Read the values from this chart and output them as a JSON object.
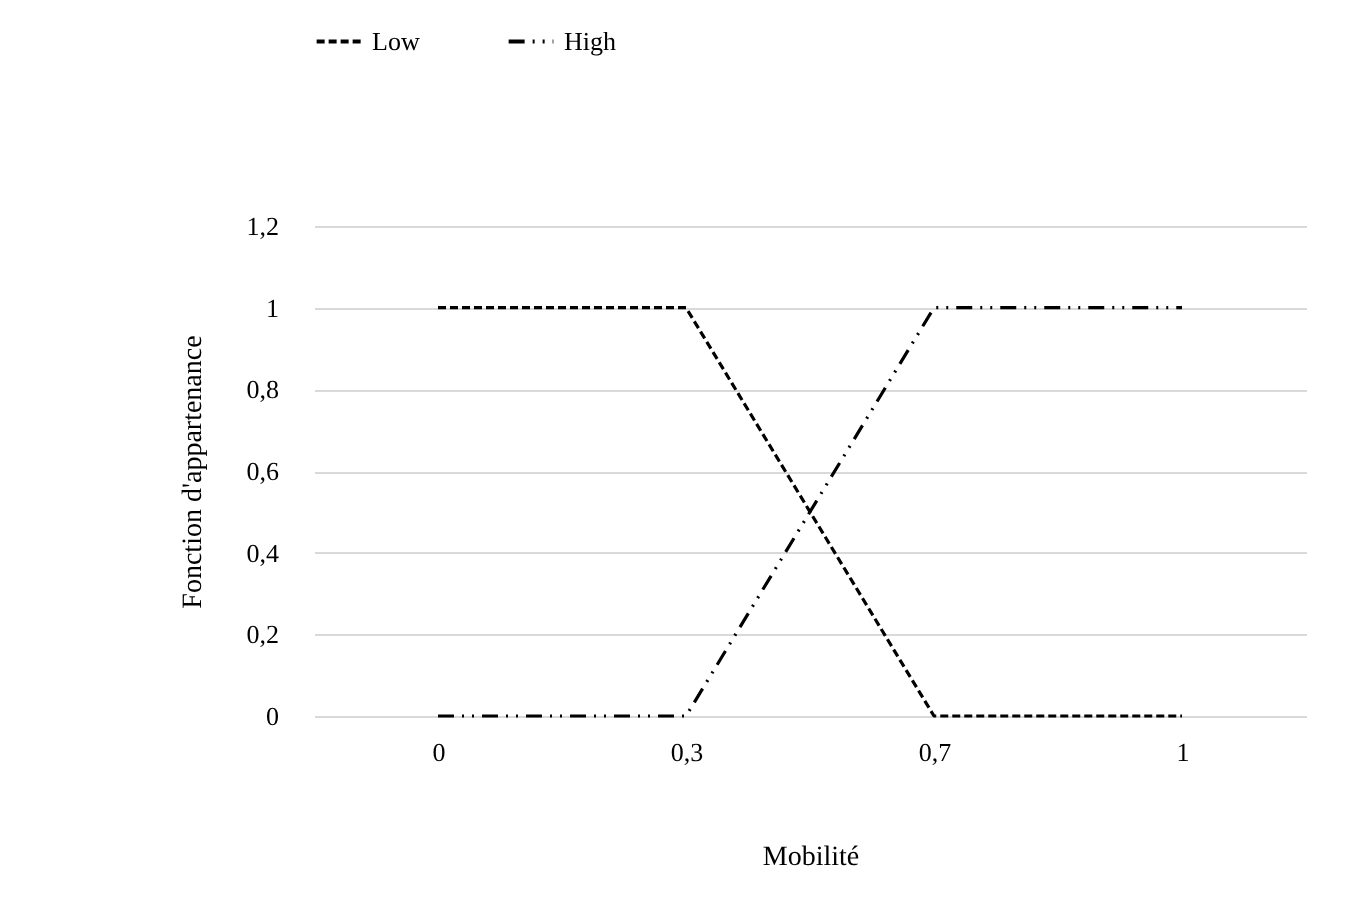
{
  "chart_data": {
    "type": "line",
    "xlabel": "Mobilité",
    "ylabel": "Fonction d'appartenance",
    "categories": [
      "0",
      "0,3",
      "0,7",
      "1"
    ],
    "series": [
      {
        "name": "Low",
        "color": "#000000",
        "values": [
          1,
          1,
          0,
          0
        ],
        "line_style": "dashed"
      },
      {
        "name": "High",
        "color": "#000000",
        "values": [
          0,
          0,
          1,
          1
        ],
        "line_style": "dashdot"
      }
    ],
    "ylim": [
      0,
      1.2
    ],
    "yticks": [
      0,
      {
        "value": 0.2,
        "label": "0,2"
      },
      {
        "value": 0.4,
        "label": "0,4"
      },
      {
        "value": 0.6,
        "label": "0,6"
      },
      {
        "value": 0.8,
        "label": "0,8"
      },
      1,
      {
        "value": 1.2,
        "label": "1,2"
      }
    ],
    "grid": "y",
    "legend": "top",
    "marker": "none"
  }
}
